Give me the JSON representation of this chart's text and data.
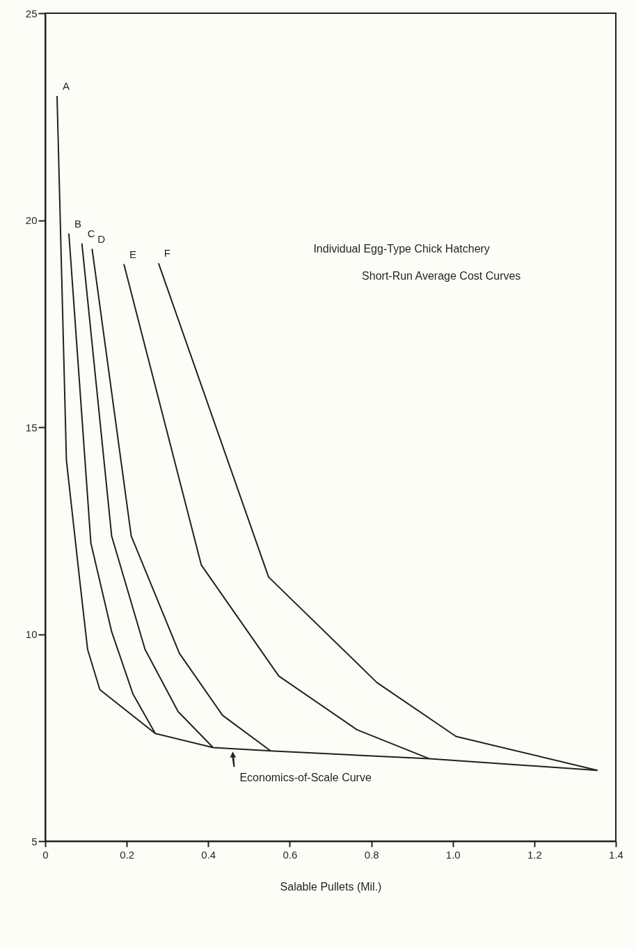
{
  "chart_data": {
    "type": "line",
    "title": "Individual Egg-Type Chick Hatchery",
    "subtitle": "Short-Run Average Cost Curves",
    "xlabel": "Salable Pullets (Mil.)",
    "xlim": [
      0,
      1.4
    ],
    "xticks": [
      0,
      0.2,
      0.4,
      0.6,
      {
        "value": 0.8,
        "label": "0.8"
      },
      {
        "value": 1,
        "label": "1.0"
      },
      1.2,
      1.4
    ],
    "ylim": [
      5,
      25
    ],
    "yticks": [
      5,
      10,
      15,
      20,
      25
    ],
    "grid": false,
    "legend": false,
    "marker": "none",
    "line_style": "solid",
    "series": [
      {
        "name": "A",
        "color": "#231f20",
        "x": [
          0.029,
          0.052,
          0.085,
          0.104,
          0.134
        ],
        "values": [
          23.0,
          14.2,
          11.27,
          9.63,
          8.66
        ]
      },
      {
        "name": "B",
        "color": "#231f20",
        "x": [
          0.058,
          0.112,
          0.163,
          0.215,
          0.27
        ],
        "values": [
          19.68,
          12.2,
          10.06,
          8.56,
          7.6
        ]
      },
      {
        "name": "C",
        "color": "#231f20",
        "x": [
          0.09,
          0.163,
          0.245,
          0.326,
          0.412
        ],
        "values": [
          19.44,
          12.37,
          9.63,
          8.13,
          7.26
        ]
      },
      {
        "name": "D",
        "color": "#231f20",
        "x": [
          0.115,
          0.211,
          0.329,
          0.435,
          0.553
        ],
        "values": [
          19.31,
          12.37,
          9.54,
          8.04,
          7.18
        ]
      },
      {
        "name": "E",
        "color": "#231f20",
        "x": [
          0.193,
          0.383,
          0.573,
          0.765,
          0.943
        ],
        "values": [
          18.94,
          11.67,
          8.99,
          7.69,
          6.99
        ]
      },
      {
        "name": "F",
        "color": "#231f20",
        "x": [
          0.278,
          0.548,
          0.814,
          1.008,
          1.355
        ],
        "values": [
          18.96,
          11.38,
          8.83,
          7.53,
          6.71
        ]
      },
      {
        "color": "#231f20",
        "x": [
          0.134,
          0.27,
          0.412,
          0.553,
          0.943,
          1.355
        ],
        "values": [
          8.66,
          7.6,
          7.26,
          7.18,
          6.99,
          6.71
        ]
      }
    ],
    "annotations": [
      {
        "text": "Economics-of-Scale Curve",
        "x": 0.46,
        "y": 7.23
      }
    ]
  }
}
